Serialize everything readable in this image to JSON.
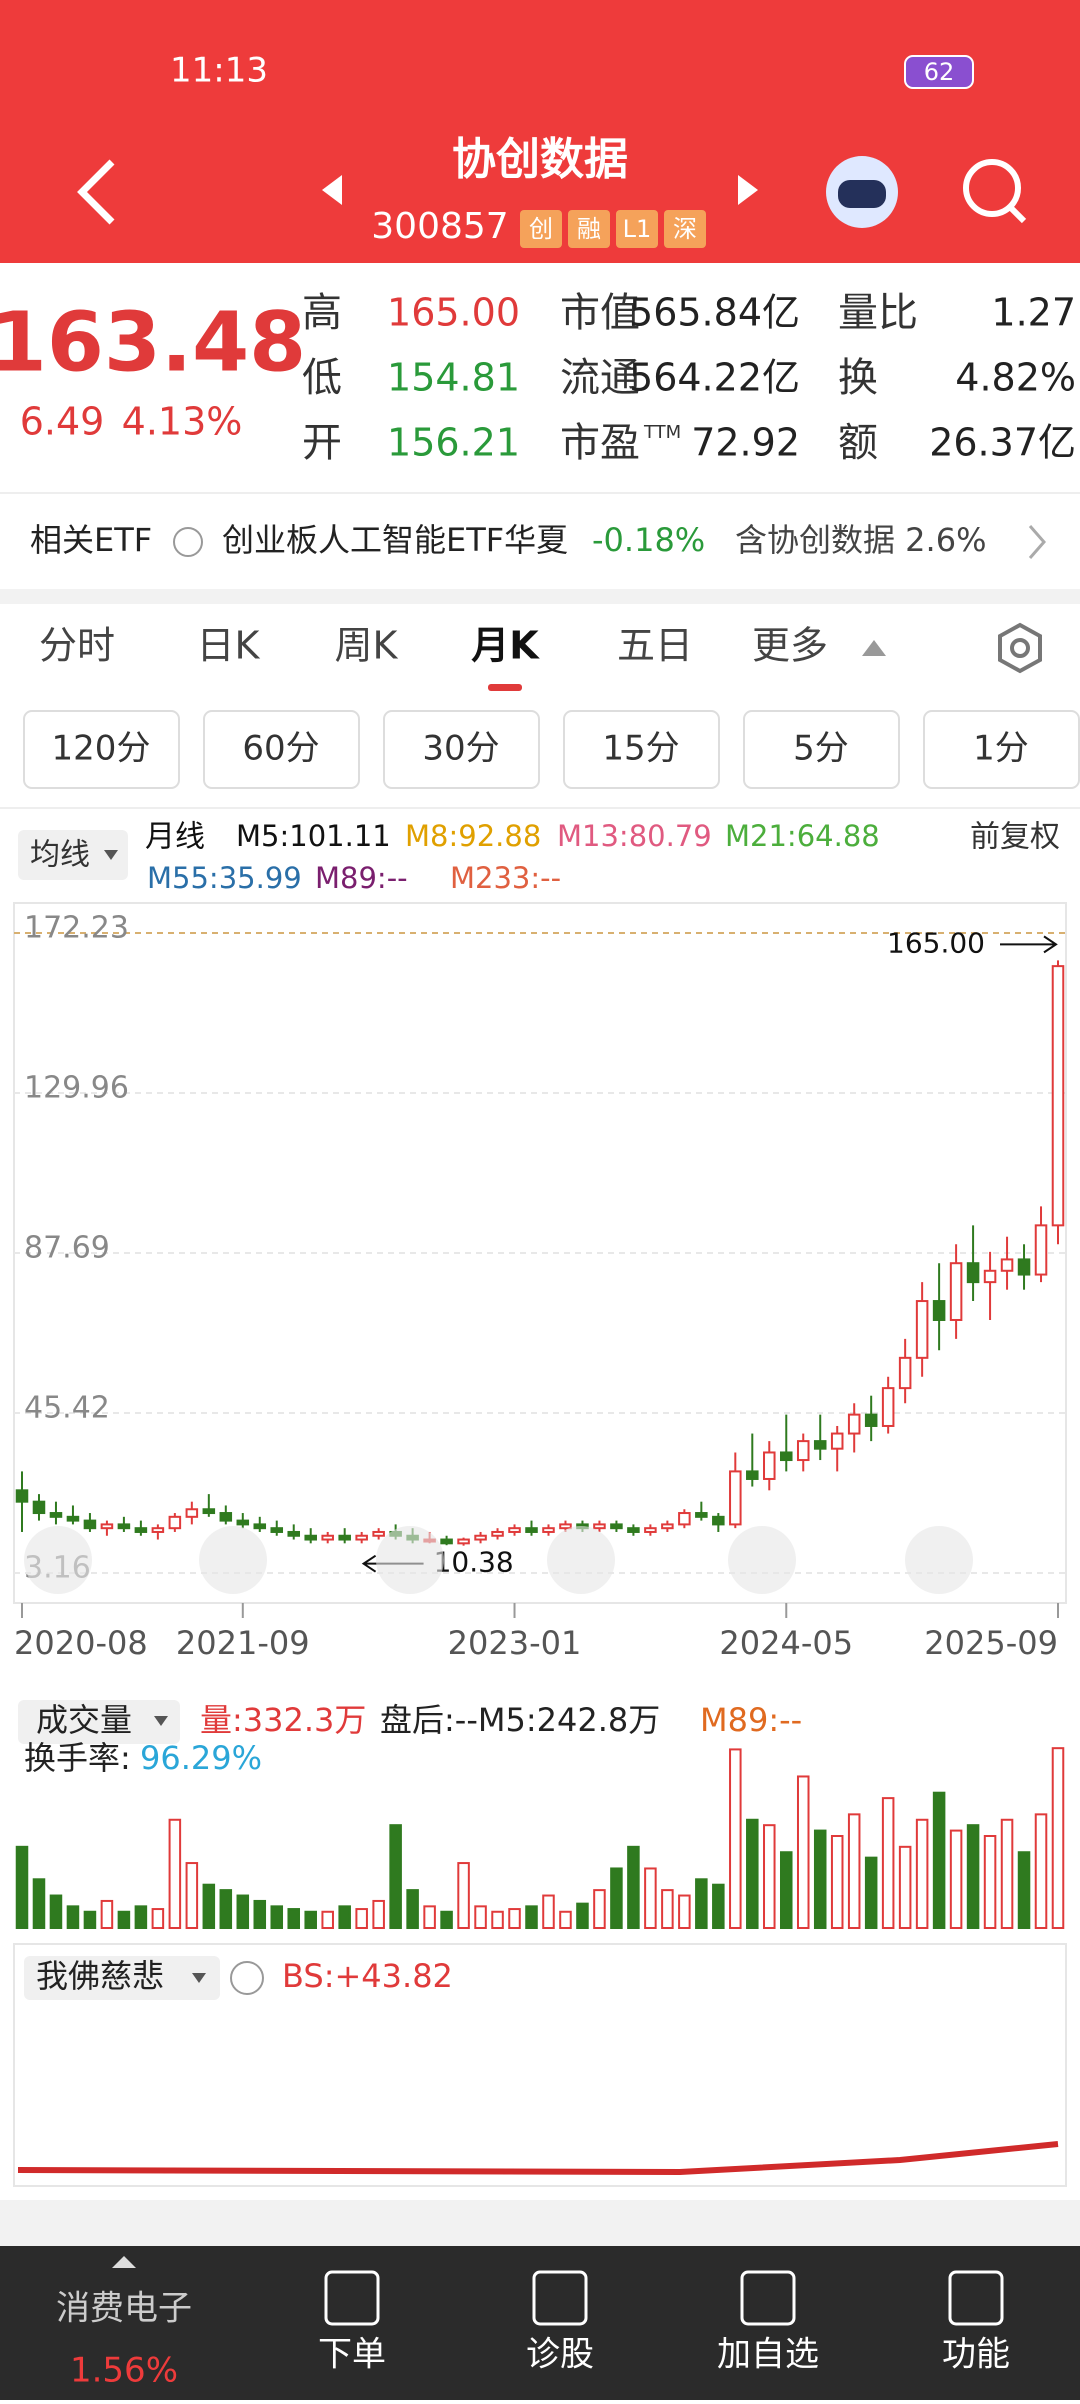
{
  "status": {
    "time": "11:13",
    "battery": "62"
  },
  "header": {
    "title": "协创数据",
    "code": "300857",
    "tags": [
      "创",
      "融",
      "L1",
      "深"
    ]
  },
  "quote": {
    "price": "163.48",
    "change": "6.49",
    "pct": "4.13%",
    "col1": [
      {
        "label": "高",
        "value": "165.00"
      },
      {
        "label": "低",
        "value": "154.81"
      },
      {
        "label": "开",
        "value": "156.21"
      }
    ],
    "col2": [
      {
        "label": "市值",
        "value": "565.84亿"
      },
      {
        "label": "流通",
        "value": "564.22亿"
      },
      {
        "label": "市盈",
        "sup": "TTM",
        "value": "72.92"
      }
    ],
    "col3": [
      {
        "label": "量比",
        "value": "1.27"
      },
      {
        "label": "换",
        "value": "4.82%"
      },
      {
        "label": "额",
        "value": "26.37亿"
      }
    ]
  },
  "etf": {
    "label": "相关ETF",
    "name": "创业板人工智能ETF华夏",
    "change": "-0.18%",
    "holding": "含协创数据 2.6%"
  },
  "tabs": [
    "分时",
    "日K",
    "周K",
    "月K",
    "五日",
    "更多"
  ],
  "periods": [
    "120分",
    "60分",
    "30分",
    "15分",
    "5分",
    "1分"
  ],
  "legend": {
    "indicator": "均线",
    "period": "月线",
    "adjust": "前复权",
    "mas": [
      {
        "text": "M5:101.11",
        "color": "#111111"
      },
      {
        "text": "M8:92.88",
        "color": "#e0a000"
      },
      {
        "text": "M13:80.79",
        "color": "#e05a80"
      },
      {
        "text": "M21:64.88",
        "color": "#4cae3c"
      },
      {
        "text": "M55:35.99",
        "color": "#2a6fa8"
      },
      {
        "text": "M89:--",
        "color": "#7a1f6e"
      },
      {
        "text": "M233:--",
        "color": "#e06040"
      }
    ]
  },
  "chart": {
    "type": "candlestick",
    "ylim": [
      3.16,
      172.23
    ],
    "yticks": [
      3.16,
      45.42,
      87.69,
      129.96,
      172.23
    ],
    "high_label": "165.00",
    "low_label": "10.38",
    "x_labels": [
      {
        "index": 0,
        "label": "2020-08"
      },
      {
        "index": 13,
        "label": "2021-09"
      },
      {
        "index": 29,
        "label": "2023-01"
      },
      {
        "index": 45,
        "label": "2024-05"
      },
      {
        "index": 61,
        "label": "2025-09"
      }
    ],
    "up_color": "#e03a3a",
    "down_color": "#2f7a1f",
    "candles": [
      [
        25,
        30,
        14,
        22
      ],
      [
        22,
        24,
        17,
        19
      ],
      [
        19,
        22,
        16,
        18
      ],
      [
        18,
        21,
        16,
        17
      ],
      [
        17,
        19,
        14,
        15
      ],
      [
        15,
        17,
        13,
        16
      ],
      [
        16,
        18,
        14,
        15
      ],
      [
        15,
        17,
        13,
        14
      ],
      [
        14,
        16,
        12,
        15
      ],
      [
        15,
        19,
        14,
        18
      ],
      [
        18,
        22,
        16,
        20
      ],
      [
        20,
        24,
        18,
        19
      ],
      [
        19,
        21,
        16,
        17
      ],
      [
        17,
        19,
        15,
        16
      ],
      [
        16,
        18,
        14,
        15
      ],
      [
        15,
        17,
        13,
        14
      ],
      [
        14,
        16,
        12,
        13
      ],
      [
        13,
        15,
        11,
        12
      ],
      [
        12,
        14,
        11,
        13
      ],
      [
        13,
        15,
        11,
        12
      ],
      [
        12,
        14,
        11,
        13
      ],
      [
        13,
        15,
        12,
        14
      ],
      [
        14,
        16,
        12,
        13
      ],
      [
        13,
        15,
        11,
        12
      ],
      [
        12,
        14,
        11,
        12
      ],
      [
        12,
        13,
        10.5,
        11
      ],
      [
        11,
        12.5,
        10.38,
        12
      ],
      [
        12,
        14,
        11,
        13
      ],
      [
        13,
        15,
        12,
        14
      ],
      [
        14,
        16,
        13,
        15
      ],
      [
        15,
        17,
        13,
        14
      ],
      [
        14,
        16,
        13,
        15
      ],
      [
        15,
        17,
        14,
        16
      ],
      [
        16,
        17,
        14,
        15
      ],
      [
        15,
        17,
        14,
        16
      ],
      [
        16,
        17,
        14,
        15
      ],
      [
        15,
        16,
        13,
        14
      ],
      [
        14,
        16,
        13,
        15
      ],
      [
        15,
        17,
        14,
        16
      ],
      [
        16,
        20,
        15,
        19
      ],
      [
        19,
        22,
        17,
        18
      ],
      [
        18,
        19,
        14,
        16
      ],
      [
        16,
        35,
        15,
        30
      ],
      [
        30,
        40,
        26,
        28
      ],
      [
        28,
        38,
        25,
        35
      ],
      [
        35,
        45,
        30,
        33
      ],
      [
        33,
        40,
        30,
        38
      ],
      [
        38,
        45,
        33,
        36
      ],
      [
        36,
        42,
        30,
        40
      ],
      [
        40,
        48,
        35,
        45
      ],
      [
        45,
        50,
        38,
        42
      ],
      [
        42,
        55,
        40,
        52
      ],
      [
        52,
        65,
        48,
        60
      ],
      [
        60,
        80,
        55,
        75
      ],
      [
        75,
        85,
        62,
        70
      ],
      [
        70,
        90,
        65,
        85
      ],
      [
        85,
        95,
        75,
        80
      ],
      [
        80,
        88,
        70,
        83
      ],
      [
        83,
        92,
        78,
        86
      ],
      [
        86,
        90,
        78,
        82
      ],
      [
        82,
        100,
        80,
        95
      ],
      [
        95,
        165,
        90,
        163.48
      ]
    ]
  },
  "volume": {
    "title": "成交量",
    "vol": "量:332.3万",
    "after": "盘后:--M5:242.8万",
    "m89": "M89:--",
    "turnover_label": "换手率:",
    "turnover": "96.29%",
    "ylim": [
      0,
      340
    ],
    "values": [
      150,
      90,
      60,
      40,
      30,
      50,
      30,
      40,
      35,
      200,
      120,
      80,
      70,
      60,
      50,
      40,
      35,
      30,
      30,
      40,
      35,
      50,
      190,
      70,
      40,
      30,
      120,
      40,
      30,
      35,
      40,
      60,
      30,
      45,
      70,
      110,
      150,
      110,
      70,
      60,
      90,
      80,
      330,
      200,
      190,
      140,
      280,
      180,
      170,
      210,
      130,
      240,
      150,
      200,
      250,
      180,
      190,
      170,
      200,
      140,
      210,
      332.3
    ]
  },
  "indicator": {
    "name": "我佛慈悲",
    "bs": "BS:+43.82"
  },
  "nav": {
    "sector": "消费电子",
    "sector_pct": "1.56%",
    "items": [
      "下单",
      "诊股",
      "加自选",
      "功能"
    ]
  }
}
